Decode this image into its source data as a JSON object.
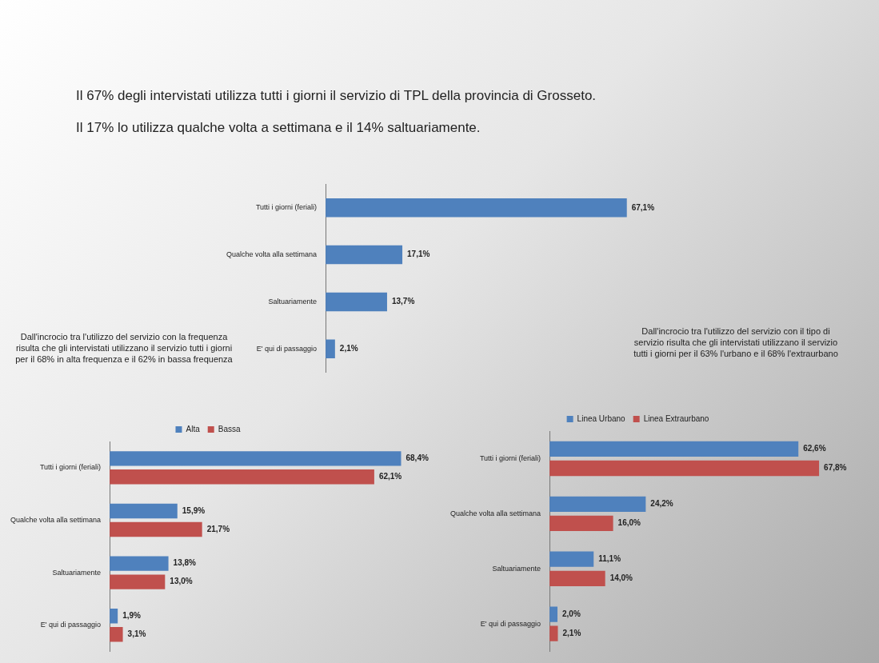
{
  "chart_data": [
    {
      "type": "bar",
      "orientation": "horizontal",
      "title": "Il 67% degli intervistati utilizza tutti i giorni il servizio di TPL della provincia di Grosseto.",
      "subtitle": "Il 17% lo utilizza qualche volta a settimana e il 14% saltuariamente.",
      "categories": [
        "Tutti i giorni (feriali)",
        "Qualche volta alla settimana",
        "Saltuariamente",
        "E' qui di passaggio"
      ],
      "values": [
        67.1,
        17.1,
        13.7,
        2.1
      ],
      "value_labels": [
        "67,1%",
        "17,1%",
        "13,7%",
        "2,1%"
      ],
      "color": "#4f81bd",
      "legend": false
    },
    {
      "type": "bar",
      "orientation": "horizontal",
      "annotations": [
        "Dall'incrocio tra l'utilizzo del servizio con la frequenza risulta che gli intervistati utilizzano il servizio tutti i giorni per il 68% in alta frequenza e il 62%  in bassa frequenza"
      ],
      "categories": [
        "Tutti i giorni (feriali)",
        "Qualche volta alla settimana",
        "Saltuariamente",
        "E' qui di passaggio"
      ],
      "series": [
        {
          "name": "Alta",
          "color": "#4f81bd",
          "values": [
            68.4,
            15.9,
            13.8,
            1.9
          ],
          "value_labels": [
            "68,4%",
            "15,9%",
            "13,8%",
            "1,9%"
          ]
        },
        {
          "name": "Bassa",
          "color": "#c0504d",
          "values": [
            62.1,
            21.7,
            13.0,
            3.1
          ],
          "value_labels": [
            "62,1%",
            "21,7%",
            "13,0%",
            "3,1%"
          ]
        }
      ],
      "legend": "top"
    },
    {
      "type": "bar",
      "orientation": "horizontal",
      "annotations": [
        "Dall'incrocio tra l'utilizzo del servizio con il tipo di servizio risulta che gli intervistati utilizzano il servizio tutti i giorni per il 63% l'urbano e il 68% l'extraurbano"
      ],
      "categories": [
        "Tutti i giorni (feriali)",
        "Qualche volta alla settimana",
        "Saltuariamente",
        "E' qui di passaggio"
      ],
      "series": [
        {
          "name": "Linea Urbano",
          "color": "#4f81bd",
          "values": [
            62.6,
            24.2,
            11.1,
            2.0
          ],
          "value_labels": [
            "62,6%",
            "24,2%",
            "11,1%",
            "2,0%"
          ]
        },
        {
          "name": "Linea Extraurbano",
          "color": "#c0504d",
          "values": [
            67.8,
            16.0,
            14.0,
            2.1
          ],
          "value_labels": [
            "67,8%",
            "16,0%",
            "14,0%",
            "2,1%"
          ]
        }
      ],
      "legend": "top"
    }
  ]
}
